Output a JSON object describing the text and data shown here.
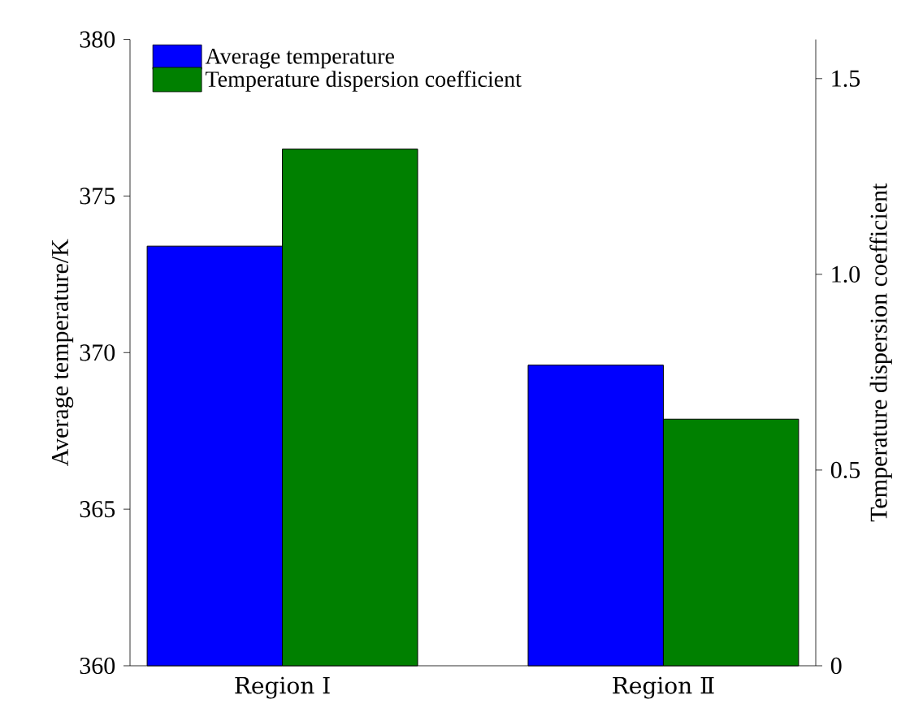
{
  "chart_data": {
    "type": "bar",
    "ylabel": "Average temperature/K",
    "y2label": "Temperature dispersion coefficient",
    "categories": [
      "Region Ⅰ",
      "Region Ⅱ"
    ],
    "series": [
      {
        "name": "Average temperature",
        "color": "#0000ff",
        "values": [
          373.4,
          369.6
        ]
      },
      {
        "name": "Temperature dispersion coefficient",
        "color": "#008000",
        "values": [
          1.32,
          0.63
        ],
        "axis": "y2"
      }
    ],
    "ylim": [
      360,
      380
    ],
    "yticks": [
      360,
      365,
      370,
      375,
      380
    ],
    "y2lim": [
      0,
      1.6
    ],
    "y2ticks": [
      0,
      0.5,
      {
        "value": 1,
        "label": "1.0"
      },
      1.5
    ],
    "legend": "top left"
  }
}
